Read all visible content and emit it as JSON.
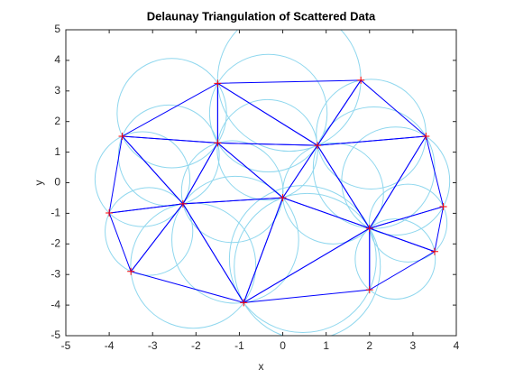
{
  "chart_data": {
    "type": "triangulation",
    "title": "Delaunay Triangulation of Scattered Data",
    "xlabel": "x",
    "ylabel": "y",
    "x": [
      -1.5,
      1.8,
      -3.7,
      -1.5,
      0.8,
      3.3,
      -4.0,
      -2.3,
      0.0,
      3.7,
      2.0,
      3.5,
      -3.5,
      -0.9,
      2.0
    ],
    "y": [
      3.25,
      3.35,
      1.52,
      1.3,
      1.22,
      1.52,
      -0.99,
      -0.69,
      -0.49,
      -0.78,
      -1.49,
      -2.25,
      -2.9,
      -3.92,
      -3.5
    ],
    "triangles": [
      [
        0,
        1,
        4
      ],
      [
        0,
        2,
        3
      ],
      [
        0,
        3,
        4
      ],
      [
        1,
        4,
        5
      ],
      [
        2,
        3,
        7
      ],
      [
        2,
        6,
        7
      ],
      [
        3,
        7,
        8
      ],
      [
        3,
        4,
        8
      ],
      [
        4,
        5,
        10
      ],
      [
        4,
        8,
        10
      ],
      [
        5,
        9,
        10
      ],
      [
        9,
        10,
        11
      ],
      [
        10,
        11,
        14
      ],
      [
        10,
        13,
        14
      ],
      [
        8,
        10,
        13
      ],
      [
        7,
        8,
        13
      ],
      [
        7,
        12,
        13
      ],
      [
        6,
        7,
        12
      ]
    ],
    "edge_color": "#0000ff",
    "circle_color": "#8fd7ee",
    "marker_color": "#ff0000",
    "xlim": [
      -5,
      4
    ],
    "ylim": [
      -5,
      5
    ],
    "xticks": [
      -5,
      -4,
      -3,
      -2,
      -1,
      0,
      1,
      2,
      3,
      4
    ],
    "yticks": [
      -5,
      -4,
      -3,
      -2,
      -1,
      0,
      1,
      2,
      3,
      4,
      5
    ]
  }
}
